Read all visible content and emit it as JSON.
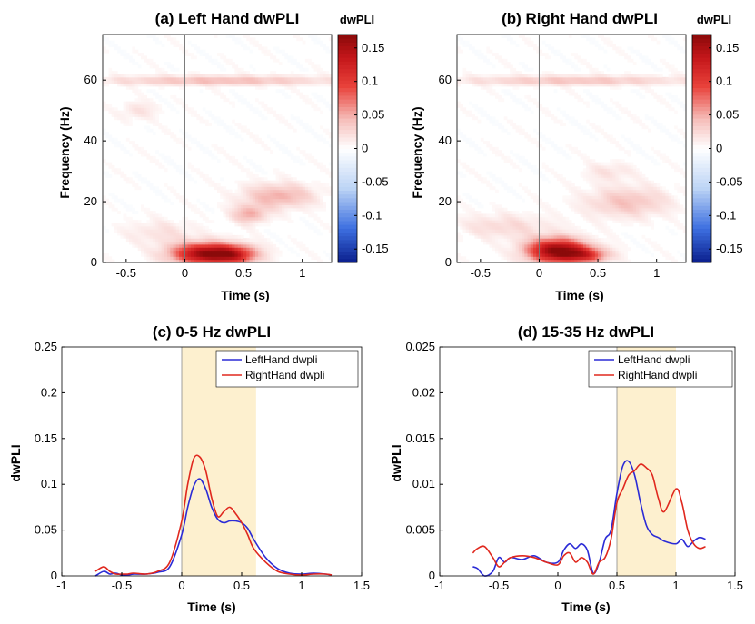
{
  "colors": {
    "left_hand": "#2b2bd6",
    "right_hand": "#e0281e",
    "shade": "#fdf0cf",
    "stim_line": "#777777",
    "cmap_neg": "#0a1e8c",
    "cmap_pos": "#8b0a0a"
  },
  "chart_data": [
    {
      "id": "a",
      "type": "heatmap",
      "title": "(a) Left Hand dwPLI",
      "xlabel": "Time (s)",
      "ylabel": "Frequency (Hz)",
      "xlim": [
        -0.7,
        1.25
      ],
      "ylim": [
        0,
        75
      ],
      "xticks": [
        -0.5,
        0,
        0.5,
        1
      ],
      "xtick_labels": [
        "-0.5",
        "0",
        "0.5",
        "1"
      ],
      "yticks": [
        0,
        20,
        40,
        60
      ],
      "ytick_labels": [
        "0",
        "20",
        "40",
        "60"
      ],
      "colorbar": {
        "label": "dwPLI",
        "range": [
          -0.17,
          0.17
        ],
        "ticks": [
          0.15,
          0.1,
          0.05,
          0,
          -0.05,
          -0.1,
          -0.15
        ],
        "tick_labels": [
          "0.15",
          "0.1",
          "0.05",
          "0",
          "-0.05",
          "-0.1",
          "-0.15"
        ]
      },
      "stim_onset": 0,
      "blobs": [
        {
          "t": 0.2,
          "f": 3,
          "rt": 0.3,
          "rf": 3.5,
          "v": 0.17
        },
        {
          "t": 0.45,
          "f": 2.5,
          "rt": 0.18,
          "rf": 3,
          "v": 0.06
        },
        {
          "t": 0.8,
          "f": 22,
          "rt": 0.3,
          "rf": 4,
          "v": 0.05
        },
        {
          "t": 0.55,
          "f": 16,
          "rt": 0.15,
          "rf": 3,
          "v": 0.05
        },
        {
          "t": 0.3,
          "f": 60,
          "rt": 1,
          "rf": 1.5,
          "v": 0.045
        },
        {
          "t": -0.2,
          "f": 10,
          "rt": 0.3,
          "rf": 4,
          "v": 0.02
        },
        {
          "t": -0.4,
          "f": 50,
          "rt": 0.15,
          "rf": 3,
          "v": 0.02
        }
      ]
    },
    {
      "id": "b",
      "type": "heatmap",
      "title": "(b) Right Hand dwPLI",
      "xlabel": "Time (s)",
      "ylabel": "Frequency (Hz)",
      "xlim": [
        -0.7,
        1.25
      ],
      "ylim": [
        0,
        75
      ],
      "xticks": [
        -0.5,
        0,
        0.5,
        1
      ],
      "xtick_labels": [
        "-0.5",
        "0",
        "0.5",
        "1"
      ],
      "yticks": [
        0,
        20,
        40,
        60
      ],
      "ytick_labels": [
        "0",
        "20",
        "40",
        "60"
      ],
      "colorbar": {
        "label": "dwPLI",
        "range": [
          -0.17,
          0.17
        ],
        "ticks": [
          0.15,
          0.1,
          0.05,
          0,
          -0.05,
          -0.1,
          -0.15
        ],
        "tick_labels": [
          "0.15",
          "0.1",
          "0.05",
          "0",
          "-0.05",
          "-0.1",
          "-0.15"
        ]
      },
      "stim_onset": 0,
      "blobs": [
        {
          "t": 0.15,
          "f": 4,
          "rt": 0.25,
          "rf": 4,
          "v": 0.17
        },
        {
          "t": 0.4,
          "f": 2.5,
          "rt": 0.2,
          "rf": 2.5,
          "v": 0.08
        },
        {
          "t": 0.75,
          "f": 20,
          "rt": 0.35,
          "rf": 5,
          "v": 0.04
        },
        {
          "t": -0.3,
          "f": 12,
          "rt": 0.4,
          "rf": 4,
          "v": 0.025
        },
        {
          "t": 0.3,
          "f": 60,
          "rt": 1,
          "rf": 1.5,
          "v": 0.04
        },
        {
          "t": 0.6,
          "f": 30,
          "rt": 0.2,
          "rf": 3,
          "v": 0.02
        }
      ]
    },
    {
      "id": "c",
      "type": "line",
      "title": "(c) 0-5 Hz dwPLI",
      "xlabel": "Time (s)",
      "ylabel": "dwPLI",
      "xlim": [
        -1,
        1.5
      ],
      "ylim": [
        0,
        0.25
      ],
      "xticks": [
        -1,
        -0.5,
        0,
        0.5,
        1,
        1.5
      ],
      "xtick_labels": [
        "-1",
        "-0.5",
        "0",
        "0.5",
        "1",
        "1.5"
      ],
      "yticks": [
        0,
        0.05,
        0.1,
        0.15,
        0.2,
        0.25
      ],
      "ytick_labels": [
        "0",
        "0.05",
        "0.1",
        "0.15",
        "0.2",
        "0.25"
      ],
      "shaded_range": [
        0,
        0.62
      ],
      "legend_position": "top-right",
      "series": [
        {
          "name": "LeftHand dwpli",
          "color_key": "left_hand",
          "x": [
            -0.72,
            -0.65,
            -0.6,
            -0.55,
            -0.5,
            -0.45,
            -0.4,
            -0.3,
            -0.2,
            -0.1,
            0,
            0.05,
            0.1,
            0.15,
            0.2,
            0.25,
            0.3,
            0.35,
            0.4,
            0.45,
            0.5,
            0.55,
            0.6,
            0.7,
            0.8,
            0.9,
            1,
            1.1,
            1.2,
            1.25
          ],
          "y": [
            0,
            0.005,
            0.002,
            0.003,
            0.001,
            0.001,
            0.002,
            0.002,
            0.004,
            0.01,
            0.045,
            0.075,
            0.098,
            0.106,
            0.095,
            0.075,
            0.062,
            0.058,
            0.06,
            0.06,
            0.058,
            0.052,
            0.04,
            0.02,
            0.008,
            0.003,
            0.002,
            0.003,
            0.002,
            0.001
          ]
        },
        {
          "name": "RightHand dwpli",
          "color_key": "right_hand",
          "x": [
            -0.72,
            -0.65,
            -0.6,
            -0.55,
            -0.5,
            -0.45,
            -0.4,
            -0.3,
            -0.2,
            -0.1,
            0,
            0.05,
            0.1,
            0.15,
            0.2,
            0.25,
            0.3,
            0.35,
            0.4,
            0.45,
            0.5,
            0.55,
            0.6,
            0.7,
            0.8,
            0.9,
            1,
            1.1,
            1.2,
            1.25
          ],
          "y": [
            0.005,
            0.01,
            0.005,
            0.002,
            0.002,
            0.002,
            0.003,
            0.002,
            0.005,
            0.015,
            0.06,
            0.1,
            0.128,
            0.13,
            0.115,
            0.085,
            0.065,
            0.07,
            0.075,
            0.068,
            0.058,
            0.045,
            0.03,
            0.015,
            0.005,
            0.002,
            0.001,
            0.002,
            0.002,
            0.001
          ]
        }
      ]
    },
    {
      "id": "d",
      "type": "line",
      "title": "(d) 15-35 Hz dwPLI",
      "xlabel": "Time (s)",
      "ylabel": "dwPLI",
      "xlim": [
        -1,
        1.5
      ],
      "ylim": [
        0,
        0.025
      ],
      "xticks": [
        -1,
        -0.5,
        0,
        0.5,
        1,
        1.5
      ],
      "xtick_labels": [
        "-1",
        "-0.5",
        "0",
        "0.5",
        "1",
        "1.5"
      ],
      "yticks": [
        0,
        0.005,
        0.01,
        0.015,
        0.02,
        0.025
      ],
      "ytick_labels": [
        "0",
        "0.005",
        "0.01",
        "0.015",
        "0.02",
        "0.025"
      ],
      "shaded_range": [
        0.5,
        1.0
      ],
      "legend_position": "top-right",
      "series": [
        {
          "name": "LeftHand dwpli",
          "color_key": "left_hand",
          "x": [
            -0.72,
            -0.68,
            -0.62,
            -0.55,
            -0.5,
            -0.45,
            -0.4,
            -0.3,
            -0.2,
            -0.1,
            0,
            0.05,
            0.1,
            0.15,
            0.2,
            0.25,
            0.3,
            0.35,
            0.4,
            0.45,
            0.5,
            0.55,
            0.6,
            0.65,
            0.7,
            0.75,
            0.8,
            0.85,
            0.9,
            1,
            1.05,
            1.1,
            1.15,
            1.2,
            1.25
          ],
          "y": [
            0.001,
            0.0008,
            0,
            0.0005,
            0.002,
            0.0015,
            0.002,
            0.0018,
            0.0022,
            0.0015,
            0.0015,
            0.0028,
            0.0035,
            0.003,
            0.0035,
            0.0028,
            0.0003,
            0.0015,
            0.004,
            0.005,
            0.009,
            0.012,
            0.0125,
            0.011,
            0.008,
            0.0055,
            0.0045,
            0.0042,
            0.0038,
            0.0035,
            0.004,
            0.0032,
            0.0038,
            0.0042,
            0.004
          ]
        },
        {
          "name": "RightHand dwpli",
          "color_key": "right_hand",
          "x": [
            -0.72,
            -0.68,
            -0.62,
            -0.55,
            -0.5,
            -0.45,
            -0.4,
            -0.3,
            -0.2,
            -0.1,
            0,
            0.05,
            0.1,
            0.15,
            0.2,
            0.25,
            0.3,
            0.35,
            0.4,
            0.45,
            0.5,
            0.55,
            0.6,
            0.65,
            0.7,
            0.75,
            0.8,
            0.85,
            0.9,
            1,
            1.05,
            1.1,
            1.15,
            1.2,
            1.25
          ],
          "y": [
            0.0025,
            0.003,
            0.0032,
            0.002,
            0.001,
            0.0015,
            0.002,
            0.0022,
            0.002,
            0.0015,
            0.0012,
            0.0022,
            0.0025,
            0.0015,
            0.002,
            0.0015,
            0.0002,
            0.0015,
            0.002,
            0.004,
            0.008,
            0.0095,
            0.011,
            0.0115,
            0.0122,
            0.0118,
            0.011,
            0.0085,
            0.007,
            0.0095,
            0.008,
            0.005,
            0.0035,
            0.003,
            0.0032
          ]
        }
      ]
    }
  ]
}
